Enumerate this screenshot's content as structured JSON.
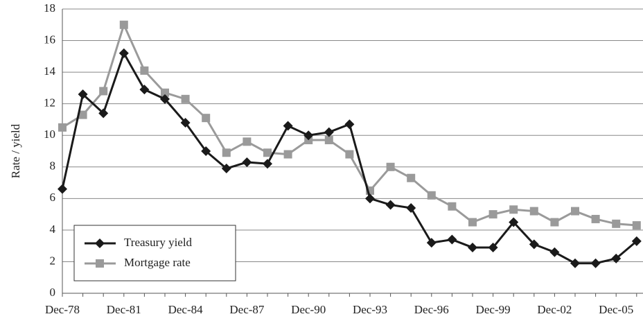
{
  "chart_data": {
    "type": "line",
    "y_label": "Rate / yield",
    "categories": [
      "Dec-78",
      null,
      null,
      "Dec-81",
      null,
      null,
      "Dec-84",
      null,
      null,
      "Dec-87",
      null,
      null,
      "Dec-90",
      null,
      null,
      "Dec-93",
      null,
      null,
      "Dec-96",
      null,
      null,
      "Dec-99",
      null,
      null,
      "Dec-02",
      null,
      null,
      "Dec-05",
      null
    ],
    "series": [
      {
        "name": "Treasury yield",
        "color": "#1a1a1a",
        "marker": "diamond",
        "values": [
          6.6,
          12.6,
          11.4,
          15.2,
          12.9,
          12.3,
          10.8,
          9.0,
          7.9,
          8.3,
          8.2,
          10.6,
          10.0,
          10.2,
          10.7,
          6.0,
          5.6,
          5.4,
          3.2,
          3.4,
          2.9,
          2.9,
          4.5,
          3.1,
          2.6,
          1.9,
          1.9,
          2.2,
          3.3
        ]
      },
      {
        "name": "Mortgage rate",
        "color": "#9a9a9a",
        "marker": "square",
        "values": [
          10.5,
          11.3,
          12.8,
          17.0,
          14.1,
          12.7,
          12.3,
          11.1,
          8.9,
          9.6,
          8.9,
          8.8,
          9.7,
          9.7,
          8.8,
          6.5,
          8.0,
          7.3,
          6.2,
          5.5,
          4.5,
          5.0,
          5.3,
          5.2,
          4.5,
          5.2,
          4.7,
          4.4,
          4.3
        ]
      }
    ],
    "ylim": [
      0,
      18
    ],
    "yticks": [
      0,
      2,
      4,
      6,
      8,
      10,
      12,
      14,
      16,
      18
    ],
    "grid": true,
    "legend": "lower left"
  }
}
